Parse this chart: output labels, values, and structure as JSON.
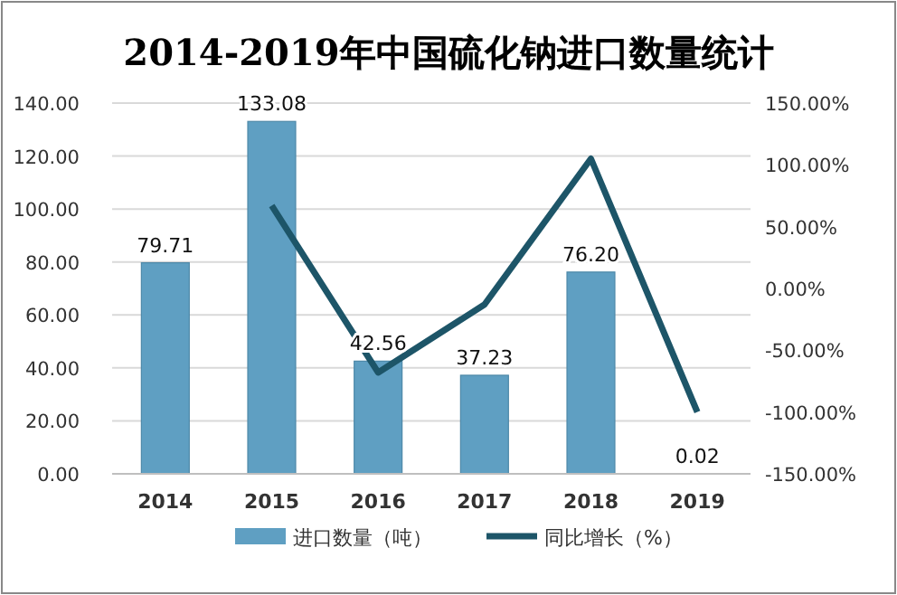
{
  "chart_data": {
    "type": "bar",
    "title": "2014-2019年中国硫化钠进口数量统计",
    "categories": [
      "2014",
      "2015",
      "2016",
      "2017",
      "2018",
      "2019"
    ],
    "series": [
      {
        "name": "进口数量（吨）",
        "color": "#5f9fc2",
        "values": [
          79.71,
          133.08,
          42.56,
          37.23,
          76.2,
          0.02
        ],
        "value_labels": [
          "79.71",
          "133.08",
          "42.56",
          "37.23",
          "76.20",
          "0.02"
        ]
      },
      {
        "name": "同比增长（%）",
        "type": "line",
        "axis": "y2",
        "color": "#1d5568",
        "values": [
          null,
          67,
          -68,
          -13,
          105,
          -100
        ]
      }
    ],
    "ylim": [
      0,
      140
    ],
    "yticks": [
      {
        "value": 0,
        "label": "0.00"
      },
      {
        "value": 20,
        "label": "20.00"
      },
      {
        "value": 40,
        "label": "40.00"
      },
      {
        "value": 60,
        "label": "60.00"
      },
      {
        "value": 80,
        "label": "80.00"
      },
      {
        "value": 100,
        "label": "100.00"
      },
      {
        "value": 120,
        "label": "120.00"
      },
      {
        "value": 140,
        "label": "140.00"
      }
    ],
    "y2lim": [
      -150,
      150
    ],
    "y2ticks": [
      {
        "value": -150,
        "label": "-150.00%"
      },
      {
        "value": -100,
        "label": "-100.00%"
      },
      {
        "value": -50,
        "label": "-50.00%"
      },
      {
        "value": 0,
        "label": "0.00%"
      },
      {
        "value": 50,
        "label": "50.00%"
      },
      {
        "value": 100,
        "label": "100.00%"
      },
      {
        "value": 150,
        "label": "150.00%"
      }
    ],
    "grid": "y",
    "legend": "bottom",
    "line_style": "solid",
    "marker": "none"
  }
}
